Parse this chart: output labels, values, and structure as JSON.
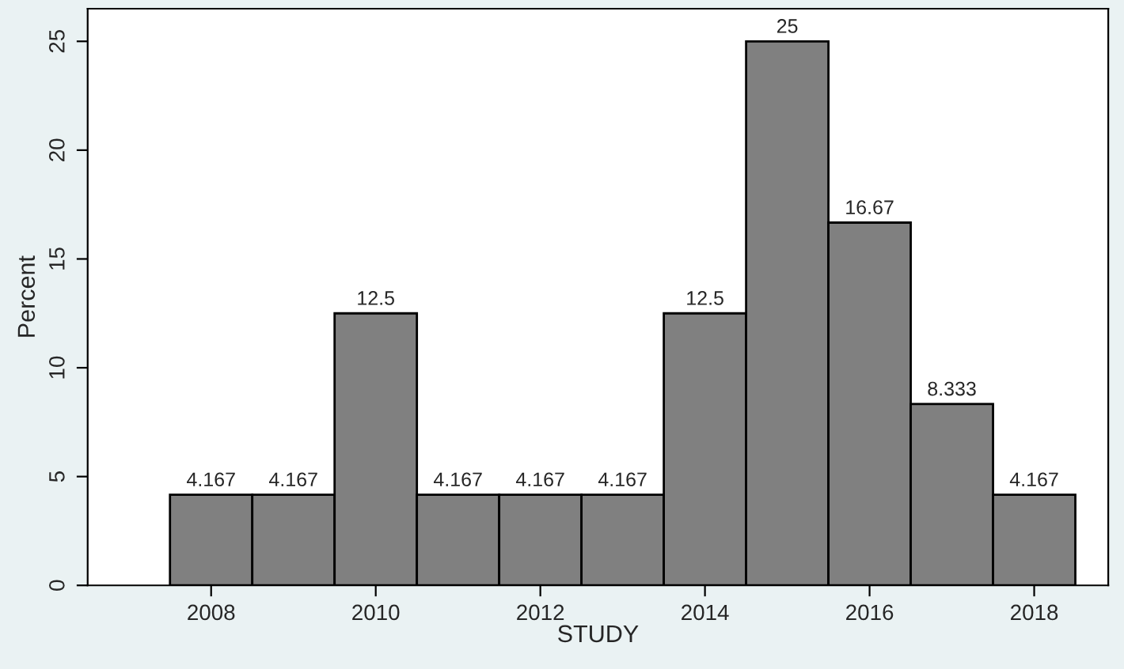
{
  "chart_data": {
    "type": "histogram",
    "xlabel": "STUDY",
    "ylabel": "Percent",
    "bins": [
      2007.5,
      2008.5,
      2009.5,
      2010.5,
      2011.5,
      2012.5,
      2013.5,
      2014.5,
      2015.5,
      2016.5,
      2017.5,
      2018.5
    ],
    "values": [
      4.167,
      4.167,
      12.5,
      4.167,
      4.167,
      4.167,
      12.5,
      25,
      16.67,
      8.333,
      4.167
    ],
    "color": "#808080",
    "data_labels": true,
    "grid": false,
    "xlim": [
      2006.5,
      2018.9
    ],
    "xticks": [
      2008,
      2010,
      2012,
      2014,
      2016,
      2018
    ],
    "ylim": [
      0,
      26.5
    ],
    "yticks": [
      0,
      5,
      10,
      15,
      20,
      25
    ]
  }
}
